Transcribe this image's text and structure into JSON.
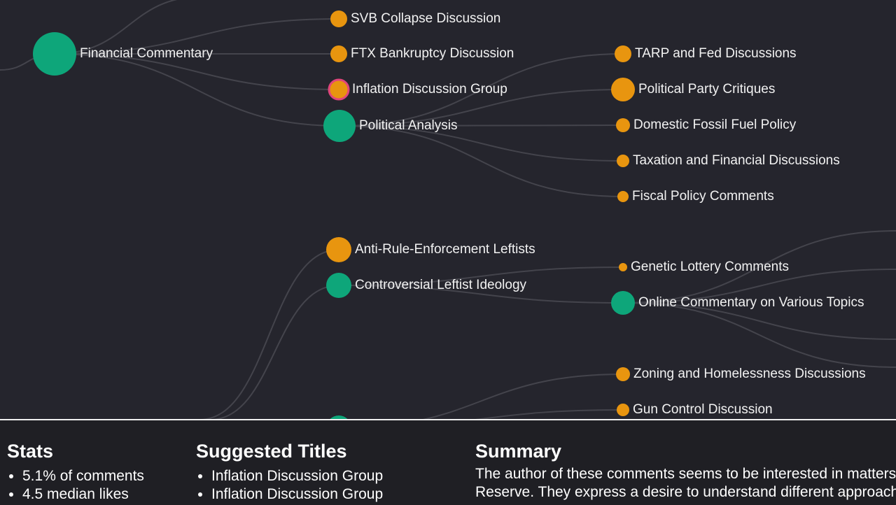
{
  "colors": {
    "background": "#25252d",
    "panel": "#1f1f24",
    "branch_node": "#0ea67a",
    "leaf_node": "#e8950f",
    "selected_outline": "#e0457b",
    "link": "#44444c"
  },
  "tree": {
    "nodes": [
      {
        "id": "financial-commentary",
        "label": "Financial Commentary",
        "kind": "branch",
        "selected": false
      },
      {
        "id": "svb",
        "label": "SVB Collapse Discussion",
        "kind": "leaf",
        "selected": false
      },
      {
        "id": "ftx",
        "label": "FTX Bankruptcy Discussion",
        "kind": "leaf",
        "selected": false
      },
      {
        "id": "inflation",
        "label": "Inflation Discussion Group",
        "kind": "leaf",
        "selected": true
      },
      {
        "id": "political-analysis",
        "label": "Political Analysis",
        "kind": "branch",
        "selected": false
      },
      {
        "id": "tarp",
        "label": "TARP and Fed Discussions",
        "kind": "leaf",
        "selected": false
      },
      {
        "id": "party",
        "label": "Political Party Critiques",
        "kind": "leaf",
        "selected": false
      },
      {
        "id": "fossil",
        "label": "Domestic Fossil Fuel Policy",
        "kind": "leaf",
        "selected": false
      },
      {
        "id": "taxation",
        "label": "Taxation and Financial Discussions",
        "kind": "leaf",
        "selected": false
      },
      {
        "id": "fiscal",
        "label": "Fiscal Policy Comments",
        "kind": "leaf",
        "selected": false
      },
      {
        "id": "anti-rule",
        "label": "Anti-Rule-Enforcement Leftists",
        "kind": "leaf",
        "selected": false
      },
      {
        "id": "controversial",
        "label": "Controversial Leftist Ideology",
        "kind": "branch",
        "selected": false
      },
      {
        "id": "genetic",
        "label": "Genetic Lottery Comments",
        "kind": "leaf",
        "selected": false
      },
      {
        "id": "online",
        "label": "Online Commentary on Various Topics",
        "kind": "branch",
        "selected": false
      },
      {
        "id": "zoning",
        "label": "Zoning and Homelessness Discussions",
        "kind": "leaf",
        "selected": false
      },
      {
        "id": "gun",
        "label": "Gun Control Discussion",
        "kind": "leaf",
        "selected": false
      },
      {
        "id": "bottom-branch",
        "label": "",
        "kind": "branch",
        "selected": false
      }
    ]
  },
  "stats": {
    "heading": "Stats",
    "items": [
      "5.1% of comments",
      "4.5 median likes"
    ]
  },
  "suggested": {
    "heading": "Suggested Titles",
    "items": [
      "Inflation Discussion Group",
      "Inflation Discussion Group"
    ]
  },
  "summary": {
    "heading": "Summary",
    "lines": [
      "The author of these comments seems to be interested in matters related to the Federal",
      "Reserve. They express a desire to understand different approaches"
    ]
  }
}
